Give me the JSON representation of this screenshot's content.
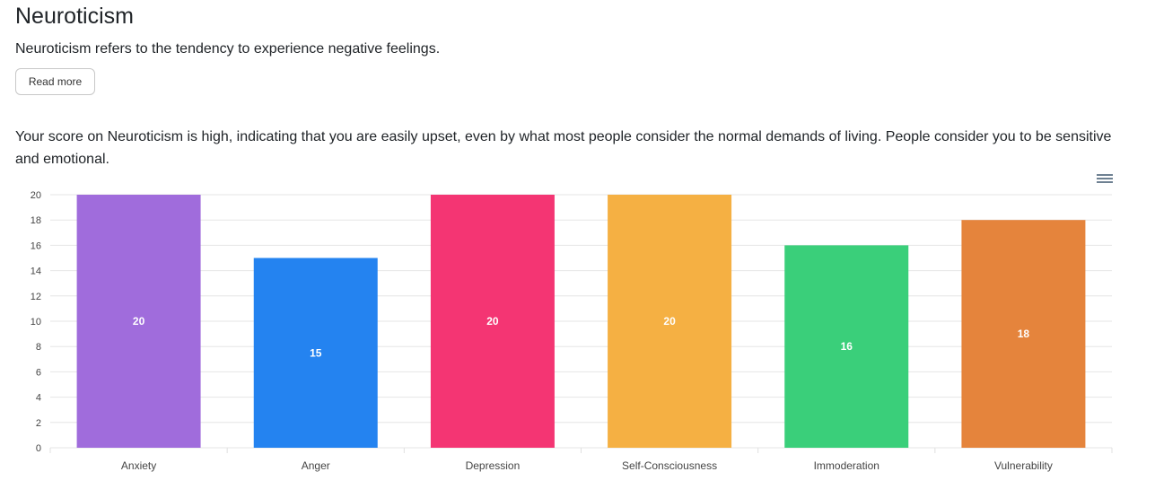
{
  "title": "Neuroticism",
  "description": "Neuroticism refers to the tendency to experience negative feelings.",
  "read_more": "Read more",
  "score_text": "Your score on Neuroticism is high, indicating that you are easily upset, even by what most people consider the normal demands of living. People consider you to be sensitive and emotional.",
  "menu_icon": "hamburger-icon",
  "chart_data": {
    "type": "bar",
    "title": "",
    "categories": [
      "Anxiety",
      "Anger",
      "Depression",
      "Self-Consciousness",
      "Immoderation",
      "Vulnerability"
    ],
    "values": [
      20,
      15,
      20,
      20,
      16,
      18
    ],
    "colors": [
      "#a06cdc",
      "#2483f0",
      "#f43573",
      "#f5b043",
      "#3acf7a",
      "#e5843c"
    ],
    "ylim": [
      0,
      20
    ],
    "yticks": [
      0,
      2,
      4,
      6,
      8,
      10,
      12,
      14,
      16,
      18,
      20
    ],
    "grid": true,
    "data_labels": true
  }
}
